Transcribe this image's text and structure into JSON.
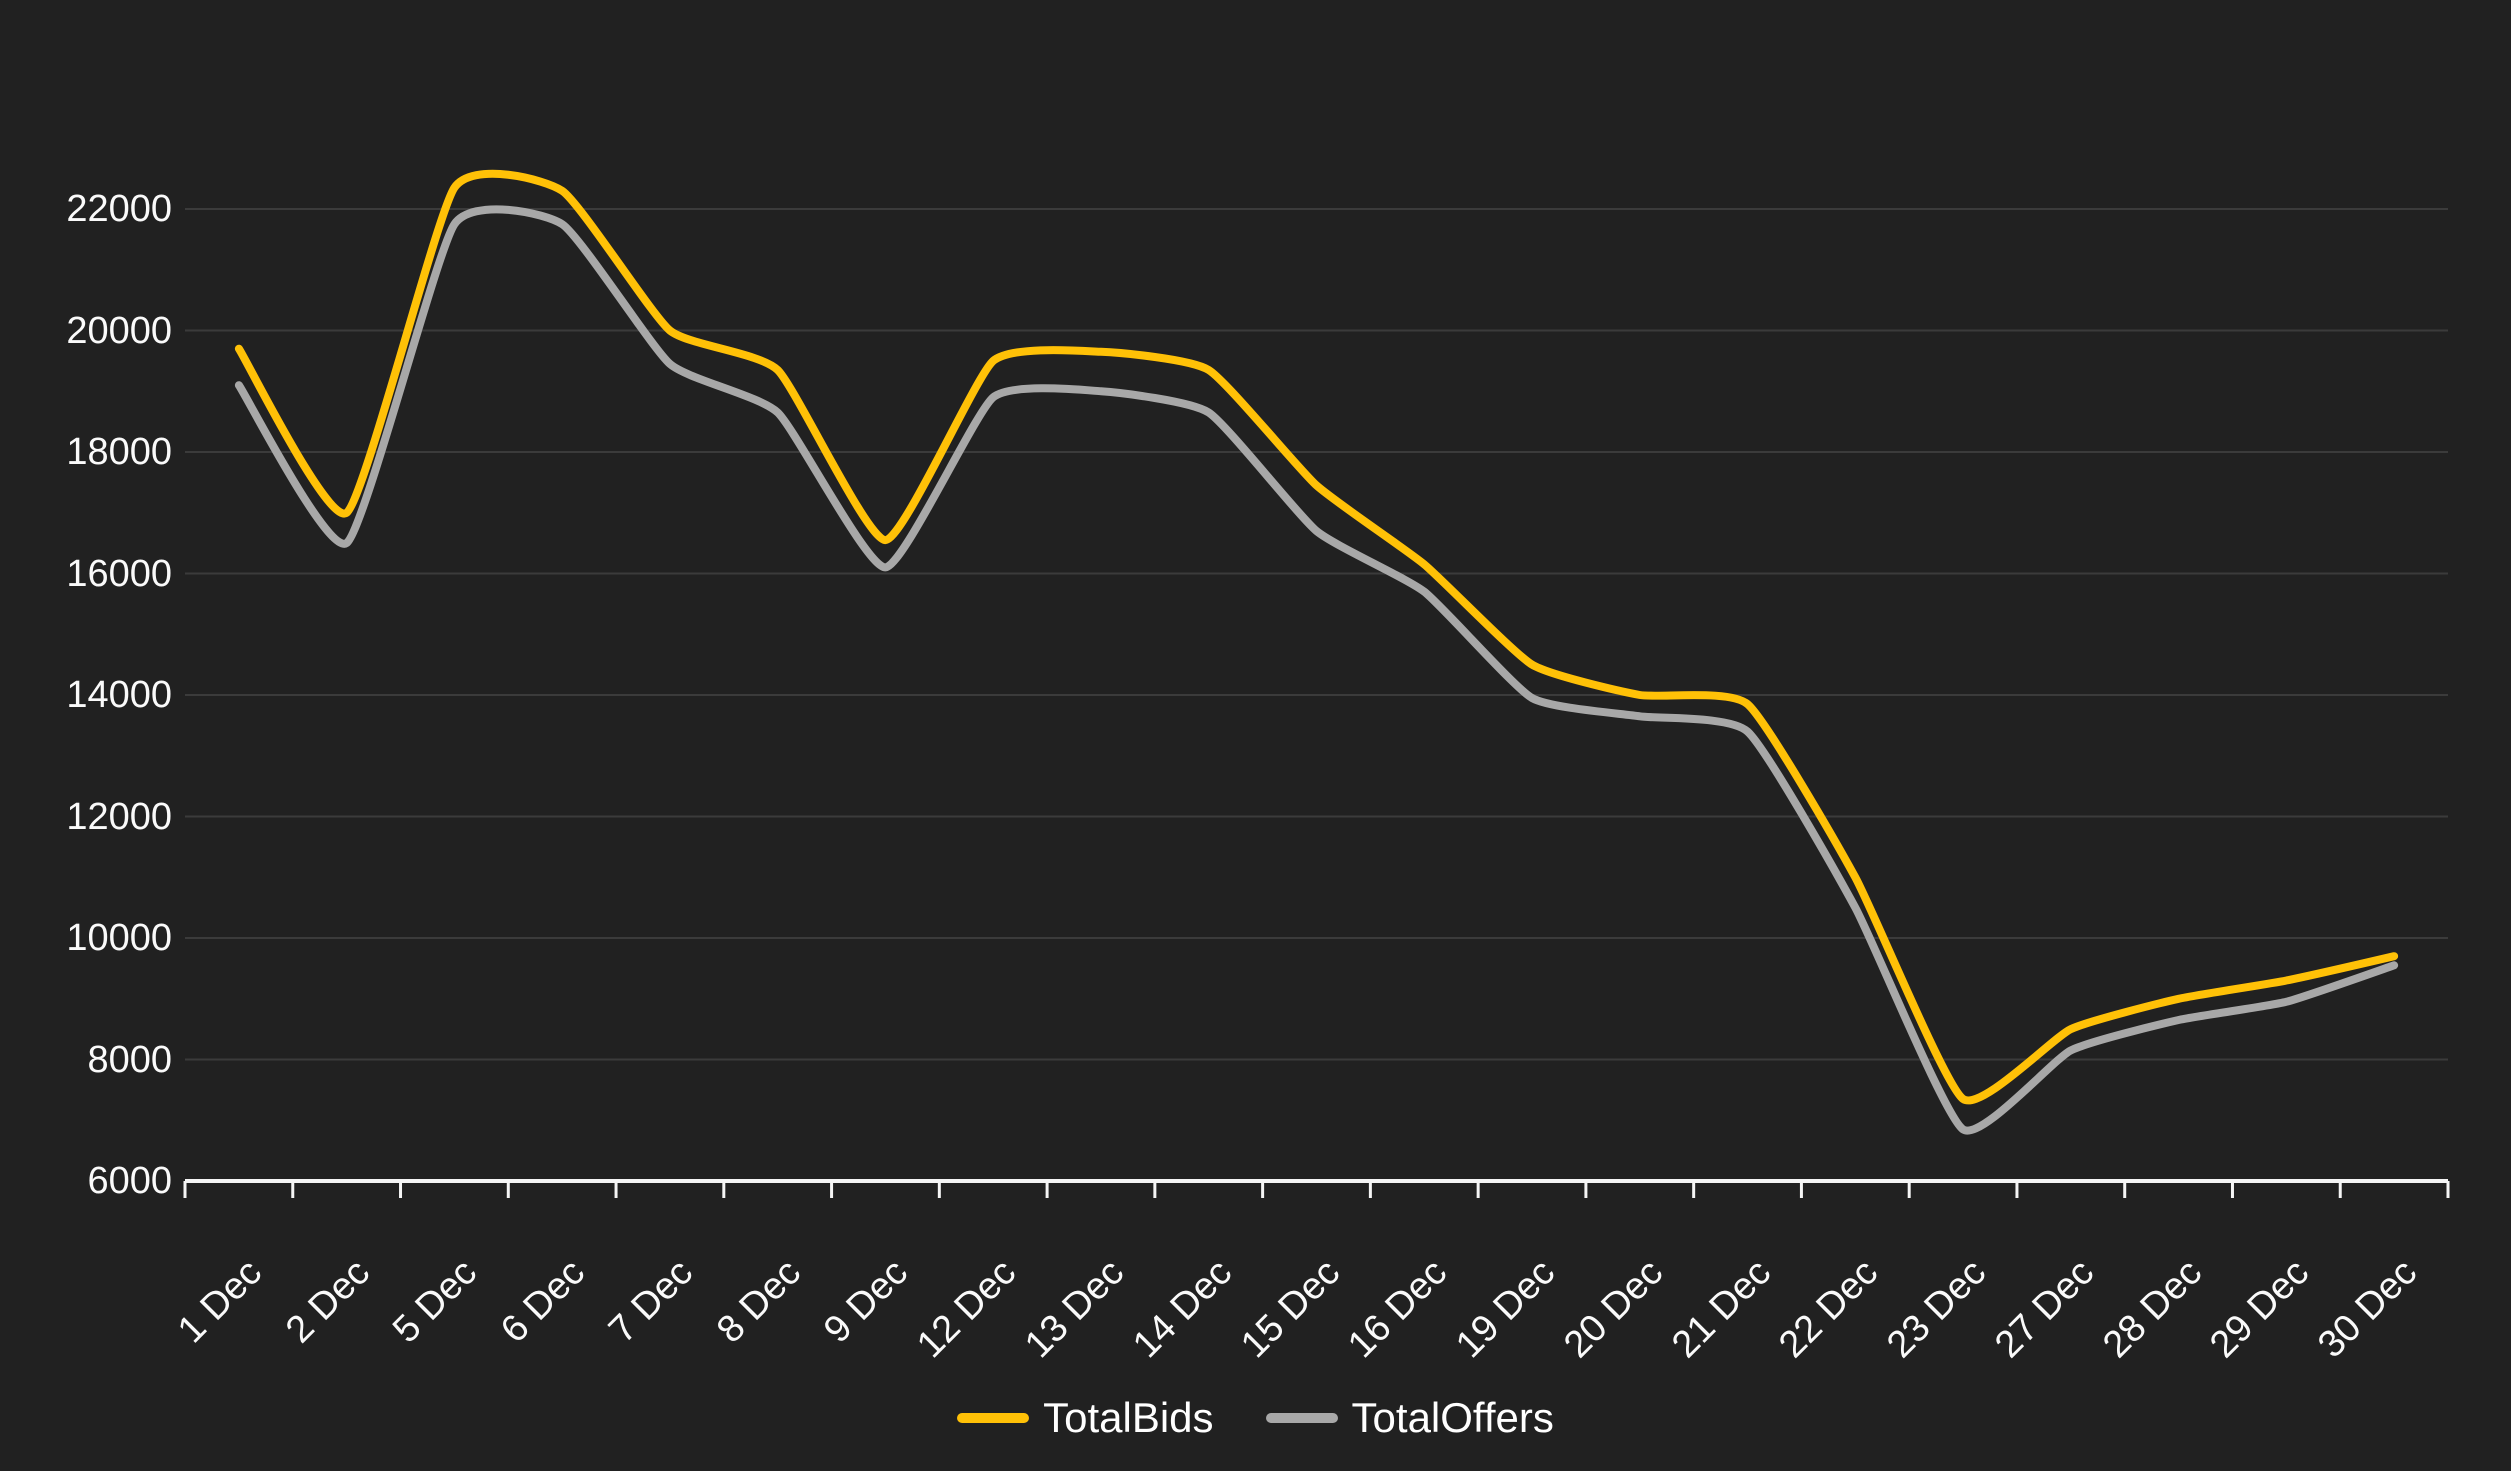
{
  "chart_data": {
    "type": "line",
    "curve": "smooth",
    "grid": "horizontal-only",
    "categories": [
      "1 Dec",
      "2 Dec",
      "5 Dec",
      "6 Dec",
      "7 Dec",
      "8 Dec",
      "9 Dec",
      "12 Dec",
      "13 Dec",
      "14 Dec",
      "15 Dec",
      "16 Dec",
      "19 Dec",
      "20 Dec",
      "21 Dec",
      "22 Dec",
      "23 Dec",
      "27 Dec",
      "28 Dec",
      "29 Dec",
      "30 Dec"
    ],
    "series": [
      {
        "name": "TotalBids",
        "color": "#FFC107",
        "values": [
          19700,
          17000,
          22350,
          22300,
          20000,
          19350,
          16550,
          19500,
          19650,
          19350,
          17450,
          16150,
          14500,
          14000,
          13850,
          11000,
          7350,
          8500,
          9000,
          9300,
          9700
        ]
      },
      {
        "name": "TotalOffers",
        "color": "#A8A8A8",
        "values": [
          19100,
          16500,
          21750,
          21750,
          19450,
          18650,
          16100,
          18900,
          19000,
          18650,
          16700,
          15700,
          13950,
          13650,
          13400,
          10500,
          6850,
          8150,
          8650,
          8950,
          9550
        ]
      }
    ],
    "y_axis": {
      "min": 6000,
      "max": 22000,
      "step": 2000,
      "tick_labels": [
        "6000",
        "8000",
        "10000",
        "12000",
        "14000",
        "16000",
        "18000",
        "20000",
        "22000"
      ]
    },
    "x_axis": {
      "label_rotation_deg": -45,
      "tick_marks": "band-boundaries"
    },
    "legend": {
      "position": "bottom",
      "items": [
        {
          "label": "TotalBids",
          "color": "#FFC107"
        },
        {
          "label": "TotalOffers",
          "color": "#A8A8A8"
        }
      ]
    },
    "colors": {
      "background": "#212121",
      "gridline": "#3B3B3B",
      "axis": "#F5F5F5",
      "text": "#FAFAFA"
    }
  }
}
